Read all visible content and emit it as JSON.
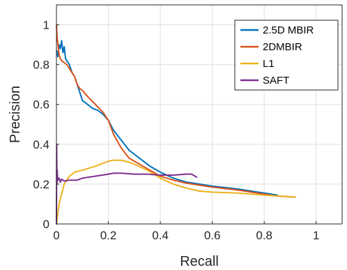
{
  "chart_data": {
    "type": "line",
    "title": "",
    "xlabel": "Recall",
    "ylabel": "Precision",
    "xlim": [
      0,
      1.1
    ],
    "ylim": [
      0,
      1.1
    ],
    "xticks": [
      0,
      0.2,
      0.4,
      0.6,
      0.8,
      1
    ],
    "xtick_labels": [
      "0",
      "0.2",
      "0.4",
      "0.6",
      "0.8",
      "1"
    ],
    "yticks": [
      0,
      0.2,
      0.4,
      0.6,
      0.8,
      1
    ],
    "ytick_labels": [
      "0",
      "0.2",
      "0.4",
      "0.6",
      "0.8",
      "1"
    ],
    "grid": true,
    "legend_position": "top-right",
    "series": [
      {
        "name": "2.5D MBIR",
        "color": "#0072BD",
        "points": [
          [
            0.0,
            0.87
          ],
          [
            0.005,
            0.84
          ],
          [
            0.01,
            0.9
          ],
          [
            0.015,
            0.88
          ],
          [
            0.02,
            0.92
          ],
          [
            0.025,
            0.86
          ],
          [
            0.03,
            0.89
          ],
          [
            0.035,
            0.83
          ],
          [
            0.04,
            0.82
          ],
          [
            0.05,
            0.8
          ],
          [
            0.06,
            0.76
          ],
          [
            0.07,
            0.74
          ],
          [
            0.08,
            0.7
          ],
          [
            0.09,
            0.66
          ],
          [
            0.1,
            0.62
          ],
          [
            0.12,
            0.6
          ],
          [
            0.14,
            0.58
          ],
          [
            0.16,
            0.57
          ],
          [
            0.18,
            0.55
          ],
          [
            0.2,
            0.52
          ],
          [
            0.22,
            0.47
          ],
          [
            0.25,
            0.42
          ],
          [
            0.28,
            0.37
          ],
          [
            0.32,
            0.33
          ],
          [
            0.36,
            0.29
          ],
          [
            0.4,
            0.26
          ],
          [
            0.45,
            0.23
          ],
          [
            0.5,
            0.21
          ],
          [
            0.55,
            0.2
          ],
          [
            0.6,
            0.19
          ],
          [
            0.7,
            0.175
          ],
          [
            0.8,
            0.155
          ],
          [
            0.85,
            0.145
          ]
        ]
      },
      {
        "name": "2DMBIR",
        "color": "#D95319",
        "points": [
          [
            0.0,
            1.0
          ],
          [
            0.003,
            0.93
          ],
          [
            0.006,
            0.9
          ],
          [
            0.01,
            0.85
          ],
          [
            0.015,
            0.83
          ],
          [
            0.02,
            0.82
          ],
          [
            0.03,
            0.81
          ],
          [
            0.04,
            0.8
          ],
          [
            0.05,
            0.78
          ],
          [
            0.07,
            0.74
          ],
          [
            0.08,
            0.7
          ],
          [
            0.09,
            0.68
          ],
          [
            0.1,
            0.67
          ],
          [
            0.12,
            0.64
          ],
          [
            0.15,
            0.6
          ],
          [
            0.18,
            0.56
          ],
          [
            0.2,
            0.52
          ],
          [
            0.22,
            0.45
          ],
          [
            0.25,
            0.38
          ],
          [
            0.28,
            0.33
          ],
          [
            0.32,
            0.3
          ],
          [
            0.36,
            0.27
          ],
          [
            0.4,
            0.24
          ],
          [
            0.45,
            0.22
          ],
          [
            0.5,
            0.205
          ],
          [
            0.55,
            0.195
          ],
          [
            0.6,
            0.185
          ],
          [
            0.7,
            0.17
          ],
          [
            0.8,
            0.15
          ],
          [
            0.85,
            0.14
          ],
          [
            0.92,
            0.135
          ]
        ]
      },
      {
        "name": "L1",
        "color": "#EDB120",
        "points": [
          [
            0.0,
            0.0
          ],
          [
            0.005,
            0.05
          ],
          [
            0.01,
            0.1
          ],
          [
            0.02,
            0.15
          ],
          [
            0.03,
            0.2
          ],
          [
            0.05,
            0.24
          ],
          [
            0.07,
            0.26
          ],
          [
            0.1,
            0.27
          ],
          [
            0.15,
            0.29
          ],
          [
            0.2,
            0.315
          ],
          [
            0.22,
            0.32
          ],
          [
            0.25,
            0.32
          ],
          [
            0.28,
            0.31
          ],
          [
            0.3,
            0.3
          ],
          [
            0.35,
            0.27
          ],
          [
            0.4,
            0.23
          ],
          [
            0.45,
            0.2
          ],
          [
            0.5,
            0.18
          ],
          [
            0.55,
            0.165
          ],
          [
            0.6,
            0.16
          ],
          [
            0.7,
            0.155
          ],
          [
            0.8,
            0.145
          ],
          [
            0.92,
            0.135
          ]
        ]
      },
      {
        "name": "SAFT",
        "color": "#7E2F8E",
        "points": [
          [
            0.0,
            0.0
          ],
          [
            0.001,
            0.4
          ],
          [
            0.002,
            0.2
          ],
          [
            0.003,
            0.27
          ],
          [
            0.005,
            0.22
          ],
          [
            0.01,
            0.23
          ],
          [
            0.015,
            0.21
          ],
          [
            0.02,
            0.225
          ],
          [
            0.03,
            0.215
          ],
          [
            0.05,
            0.22
          ],
          [
            0.08,
            0.22
          ],
          [
            0.1,
            0.23
          ],
          [
            0.15,
            0.24
          ],
          [
            0.2,
            0.25
          ],
          [
            0.22,
            0.255
          ],
          [
            0.25,
            0.255
          ],
          [
            0.3,
            0.25
          ],
          [
            0.35,
            0.25
          ],
          [
            0.4,
            0.245
          ],
          [
            0.45,
            0.245
          ],
          [
            0.5,
            0.25
          ],
          [
            0.52,
            0.25
          ],
          [
            0.54,
            0.235
          ]
        ]
      }
    ]
  }
}
